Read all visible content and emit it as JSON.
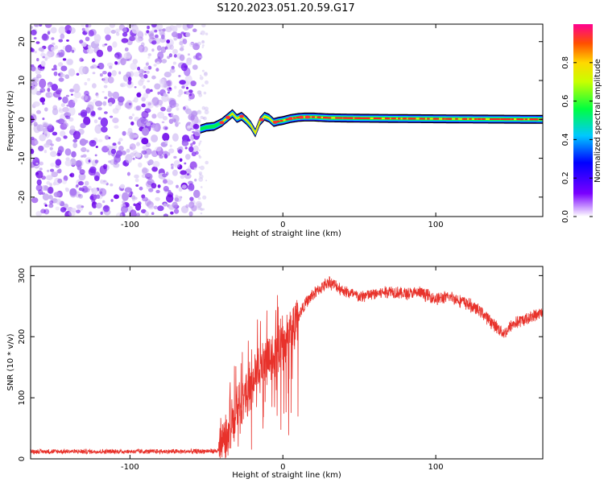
{
  "figure_title": "S120.2023.051.20.59.G17",
  "chart_data": [
    {
      "type": "heatmap",
      "title": "",
      "xlabel": "Height of straight line (km)",
      "ylabel": "Frequency (Hz)",
      "xlim": [
        -165,
        170
      ],
      "ylim": [
        -25,
        24.5
      ],
      "x_ticks": [
        -100,
        0,
        100
      ],
      "x_tick_labels": [
        "-100",
        "0",
        "100"
      ],
      "y_ticks": [
        -20,
        -10,
        0,
        10,
        20
      ],
      "y_tick_labels": [
        "-20",
        "-10",
        "0",
        "10",
        "20"
      ],
      "noise_region_x": [
        -165,
        -55
      ],
      "signal_start_x": -54,
      "signal_ridge": {
        "x": [
          -54,
          -50,
          -45,
          -40,
          -36,
          -33,
          -30,
          -27,
          -24,
          -21,
          -18,
          -15,
          -12,
          -9,
          -6,
          -3,
          0,
          5,
          10,
          14,
          20,
          30,
          50,
          80,
          120,
          170
        ],
        "y": [
          -2.5,
          -2.0,
          -1.8,
          -0.8,
          0.5,
          1.5,
          0.2,
          0.8,
          -0.2,
          -1.5,
          -3.5,
          -0.5,
          0.8,
          0.3,
          -0.8,
          -0.5,
          -0.3,
          0.2,
          0.5,
          0.6,
          0.6,
          0.4,
          0.3,
          0.2,
          0.1,
          0.0
        ]
      },
      "colorbar": {
        "label": "Normalized spectral amplitude",
        "range": [
          0,
          1
        ],
        "ticks": [
          0.0,
          0.2,
          0.4,
          0.6,
          0.8
        ],
        "tick_labels": [
          "0.0",
          "0.2",
          "0.4",
          "0.6",
          "0.8"
        ]
      },
      "grid": false
    },
    {
      "type": "line",
      "title": "",
      "xlabel": "Height of straight line (km)",
      "ylabel": "SNR (10 * v/v)",
      "xlim": [
        -165,
        170
      ],
      "ylim": [
        0,
        315
      ],
      "x_ticks": [
        -100,
        0,
        100
      ],
      "x_tick_labels": [
        "-100",
        "0",
        "100"
      ],
      "y_ticks": [
        0,
        100,
        200,
        300
      ],
      "y_tick_labels": [
        "0",
        "100",
        "200",
        "300"
      ],
      "line_color": "#e8322b",
      "envelope": {
        "x": [
          -165,
          -100,
          -60,
          -42,
          -40,
          -35,
          -30,
          -25,
          -20,
          -15,
          -10,
          -5,
          0,
          5,
          10,
          15,
          20,
          25,
          30,
          40,
          50,
          60,
          70,
          80,
          90,
          100,
          110,
          120,
          130,
          140,
          145,
          150,
          160,
          170
        ],
        "y": [
          12,
          12,
          12,
          13,
          30,
          55,
          80,
          100,
          130,
          145,
          160,
          175,
          190,
          210,
          235,
          255,
          270,
          280,
          290,
          275,
          265,
          270,
          275,
          270,
          272,
          262,
          265,
          255,
          240,
          215,
          205,
          220,
          230,
          240
        ]
      },
      "grid": false
    }
  ]
}
